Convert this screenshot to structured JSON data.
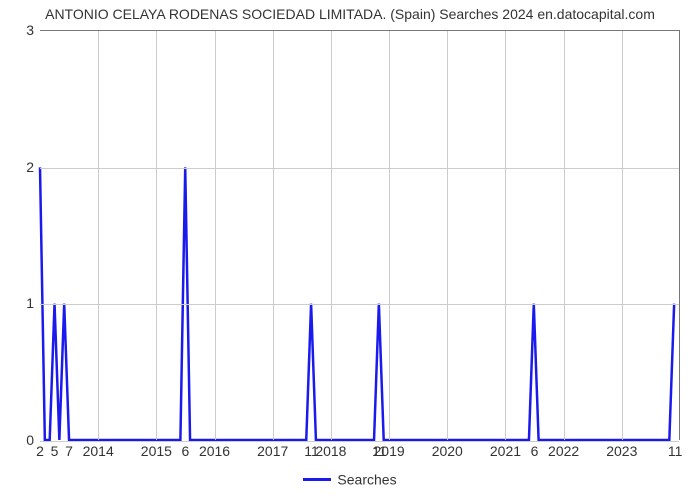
{
  "chart": {
    "type": "line",
    "title": "ANTONIO CELAYA RODENAS SOCIEDAD LIMITADA. (Spain) Searches 2024 en.datocapital.com",
    "title_fontsize": 14,
    "title_color": "#333333",
    "background_color": "#ffffff",
    "line_color": "#1a1aee",
    "line_width": 2.5,
    "grid_color": "#cccccc",
    "axis_color": "#777777",
    "ylim": [
      0,
      3
    ],
    "ytick_step": 1,
    "yticks": [
      0,
      1,
      2,
      3
    ],
    "x_domain": [
      0,
      132
    ],
    "xticks_years": [
      {
        "label": "2014",
        "x": 12
      },
      {
        "label": "2015",
        "x": 24
      },
      {
        "label": "2016",
        "x": 36
      },
      {
        "label": "2017",
        "x": 48
      },
      {
        "label": "2018",
        "x": 60
      },
      {
        "label": "2019",
        "x": 72
      },
      {
        "label": "2020",
        "x": 84
      },
      {
        "label": "2021",
        "x": 96
      },
      {
        "label": "2022",
        "x": 108
      },
      {
        "label": "2023",
        "x": 120
      }
    ],
    "xticks_data": [
      {
        "label": "2",
        "x": 0
      },
      {
        "label": "5",
        "x": 3
      },
      {
        "label": "7",
        "x": 6
      },
      {
        "label": "6",
        "x": 30
      },
      {
        "label": "11",
        "x": 56
      },
      {
        "label": "11",
        "x": 70
      },
      {
        "label": "6",
        "x": 102
      },
      {
        "label": "11",
        "x": 131
      }
    ],
    "series_values": [
      2,
      0,
      0,
      1,
      0,
      1,
      0,
      0,
      0,
      0,
      0,
      0,
      0,
      0,
      0,
      0,
      0,
      0,
      0,
      0,
      0,
      0,
      0,
      0,
      0,
      0,
      0,
      0,
      0,
      0,
      2,
      0,
      0,
      0,
      0,
      0,
      0,
      0,
      0,
      0,
      0,
      0,
      0,
      0,
      0,
      0,
      0,
      0,
      0,
      0,
      0,
      0,
      0,
      0,
      0,
      0,
      1,
      0,
      0,
      0,
      0,
      0,
      0,
      0,
      0,
      0,
      0,
      0,
      0,
      0,
      1,
      0,
      0,
      0,
      0,
      0,
      0,
      0,
      0,
      0,
      0,
      0,
      0,
      0,
      0,
      0,
      0,
      0,
      0,
      0,
      0,
      0,
      0,
      0,
      0,
      0,
      0,
      0,
      0,
      0,
      0,
      0,
      1,
      0,
      0,
      0,
      0,
      0,
      0,
      0,
      0,
      0,
      0,
      0,
      0,
      0,
      0,
      0,
      0,
      0,
      0,
      0,
      0,
      0,
      0,
      0,
      0,
      0,
      0,
      0,
      0,
      1
    ],
    "legend": {
      "label": "Searches",
      "color": "#1a1aee"
    },
    "tick_fontsize": 14,
    "tick_color": "#333333"
  }
}
